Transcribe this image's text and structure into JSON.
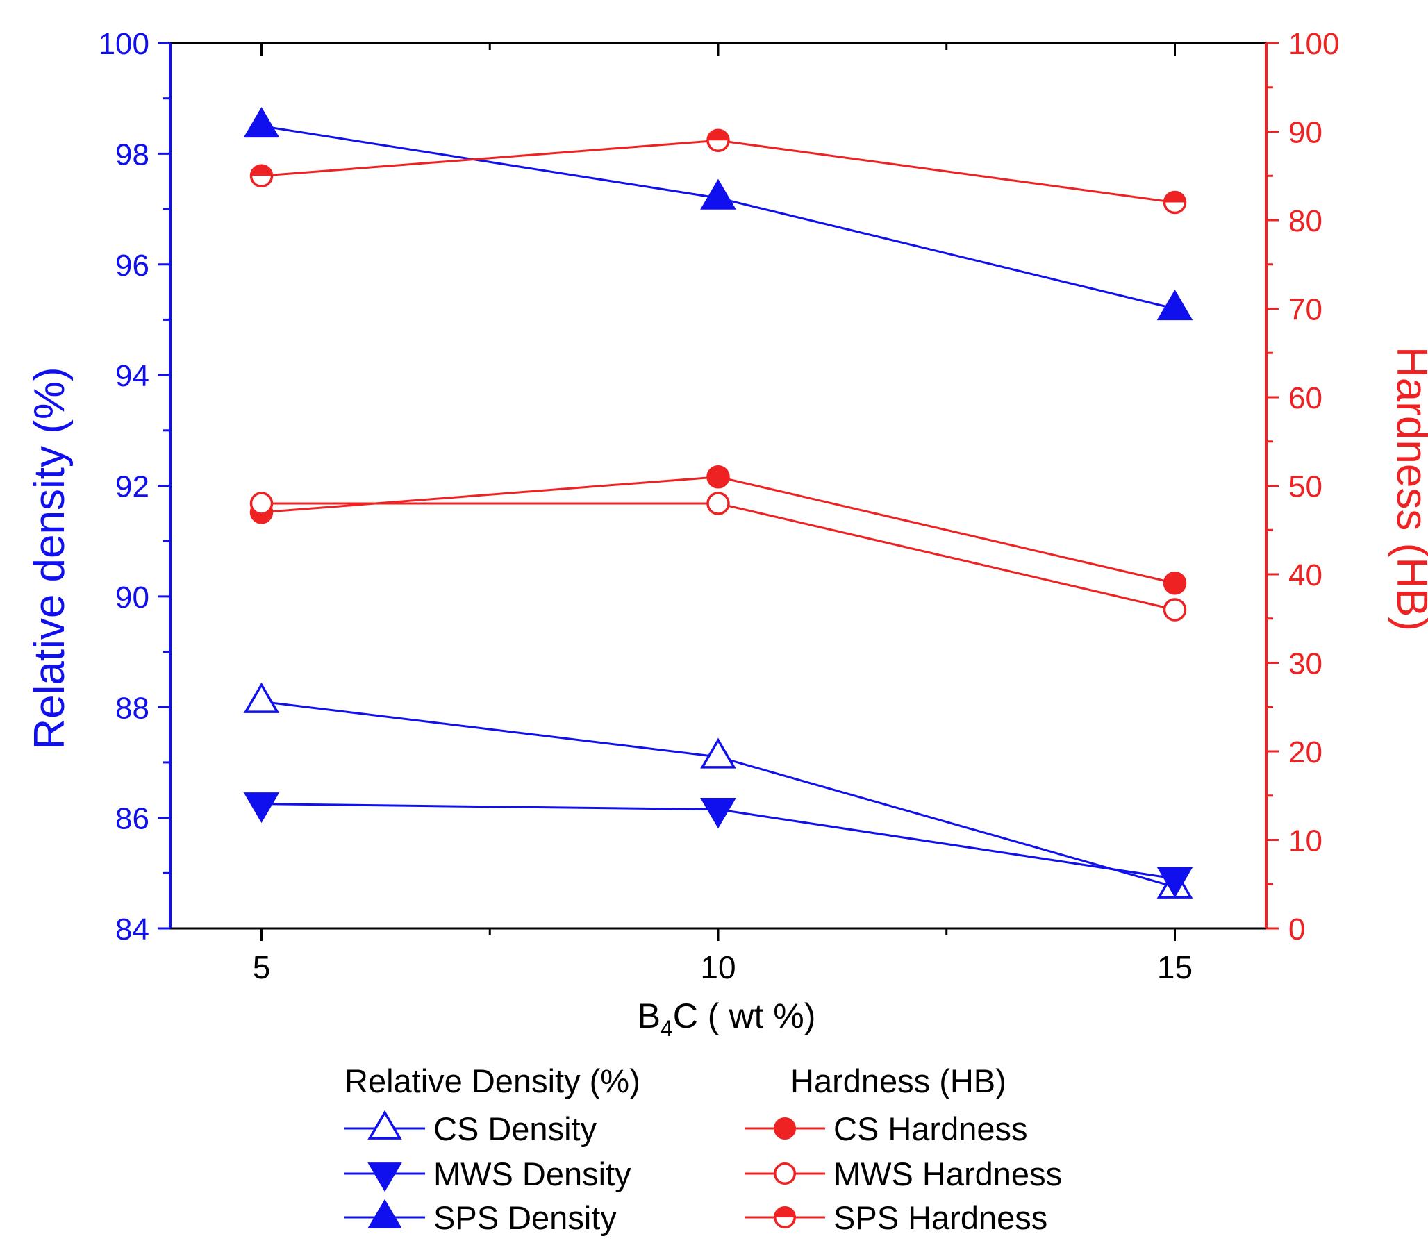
{
  "colors": {
    "blue": "#1010ee",
    "red": "#ee2222",
    "axis": "#000000"
  },
  "chart_data": {
    "type": "line",
    "xlabel_main": "B",
    "xlabel_sub": "4",
    "xlabel_rest": "C ( wt %)",
    "ylabel_left": "Relative density (%)",
    "ylabel_right": "Hardness (HB)",
    "x_ticks": [
      5,
      10,
      15
    ],
    "xlim": [
      4,
      16
    ],
    "ylim_left": [
      84,
      100
    ],
    "y_ticks_left": [
      84,
      86,
      88,
      90,
      92,
      94,
      96,
      98,
      100
    ],
    "ylim_right": [
      0,
      100
    ],
    "y_ticks_right": [
      0,
      10,
      20,
      30,
      40,
      50,
      60,
      70,
      80,
      90,
      100
    ],
    "x": [
      5,
      10,
      15
    ],
    "series": [
      {
        "name": "CS Density",
        "axis": "left",
        "color": "blue",
        "marker": "triangle-up-open",
        "values": [
          88.1,
          87.1,
          84.75
        ]
      },
      {
        "name": "MWS Density",
        "axis": "left",
        "color": "blue",
        "marker": "triangle-down-filled",
        "values": [
          86.25,
          86.15,
          84.9
        ]
      },
      {
        "name": "SPS Density",
        "axis": "left",
        "color": "blue",
        "marker": "triangle-up-filled",
        "values": [
          98.5,
          97.2,
          95.2
        ]
      },
      {
        "name": "CS Hardness",
        "axis": "right",
        "color": "red",
        "marker": "circle-filled",
        "values": [
          47,
          51,
          39
        ]
      },
      {
        "name": "MWS Hardness",
        "axis": "right",
        "color": "red",
        "marker": "circle-open",
        "values": [
          48,
          48,
          36
        ]
      },
      {
        "name": "SPS Hardness",
        "axis": "right",
        "color": "red",
        "marker": "circle-half",
        "values": [
          85,
          89,
          82
        ]
      }
    ],
    "legend": {
      "placement": "bottom",
      "group_left_title": "Relative Density (%)",
      "group_right_title": "Hardness (HB)"
    }
  }
}
